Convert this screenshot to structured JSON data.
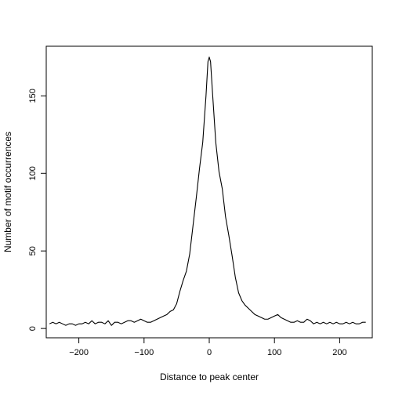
{
  "chart_data": {
    "type": "line",
    "title": "",
    "xlabel": "Distance to peak center",
    "ylabel": "Number of motif occurrences",
    "xlim": [
      -250,
      250
    ],
    "ylim": [
      -6,
      182
    ],
    "x_ticks": [
      -200,
      -100,
      0,
      100,
      200
    ],
    "x_tick_labels": [
      "−200",
      "−100",
      "0",
      "100",
      "200"
    ],
    "y_ticks": [
      0,
      50,
      100,
      150
    ],
    "y_tick_labels": [
      "0",
      "50",
      "100",
      "150"
    ],
    "grid": false,
    "legend": "none",
    "line_color": "#000000",
    "series": [
      {
        "x": [
          -245,
          -240,
          -235,
          -230,
          -225,
          -220,
          -215,
          -210,
          -205,
          -200,
          -195,
          -190,
          -185,
          -180,
          -175,
          -170,
          -165,
          -160,
          -155,
          -150,
          -145,
          -140,
          -135,
          -130,
          -125,
          -120,
          -115,
          -110,
          -105,
          -100,
          -95,
          -90,
          -85,
          -80,
          -75,
          -70,
          -65,
          -60,
          -55,
          -50,
          -45,
          -40,
          -35,
          -30,
          -25,
          -20,
          -15,
          -10,
          -5,
          -2,
          0,
          2,
          5,
          10,
          15,
          20,
          25,
          30,
          35,
          40,
          45,
          50,
          55,
          60,
          65,
          70,
          75,
          80,
          85,
          90,
          95,
          100,
          105,
          110,
          115,
          120,
          125,
          130,
          135,
          140,
          145,
          150,
          155,
          160,
          165,
          170,
          175,
          180,
          185,
          190,
          195,
          200,
          205,
          210,
          215,
          220,
          225,
          230,
          235,
          240
        ],
        "values": [
          3,
          4,
          3,
          4,
          3,
          2,
          3,
          3,
          2,
          3,
          3,
          4,
          3,
          5,
          3,
          4,
          4,
          3,
          5,
          2,
          4,
          4,
          3,
          4,
          5,
          5,
          4,
          5,
          6,
          5,
          4,
          4,
          5,
          6,
          7,
          8,
          9,
          11,
          12,
          16,
          24,
          31,
          37,
          48,
          66,
          84,
          103,
          120,
          150,
          172,
          175,
          172,
          152,
          120,
          101,
          90,
          72,
          60,
          47,
          33,
          23,
          18,
          15,
          13,
          11,
          9,
          8,
          7,
          6,
          6,
          7,
          8,
          9,
          7,
          6,
          5,
          4,
          4,
          5,
          4,
          4,
          6,
          5,
          3,
          4,
          3,
          4,
          3,
          4,
          3,
          4,
          3,
          3,
          4,
          3,
          4,
          3,
          3,
          4,
          4
        ]
      }
    ]
  }
}
